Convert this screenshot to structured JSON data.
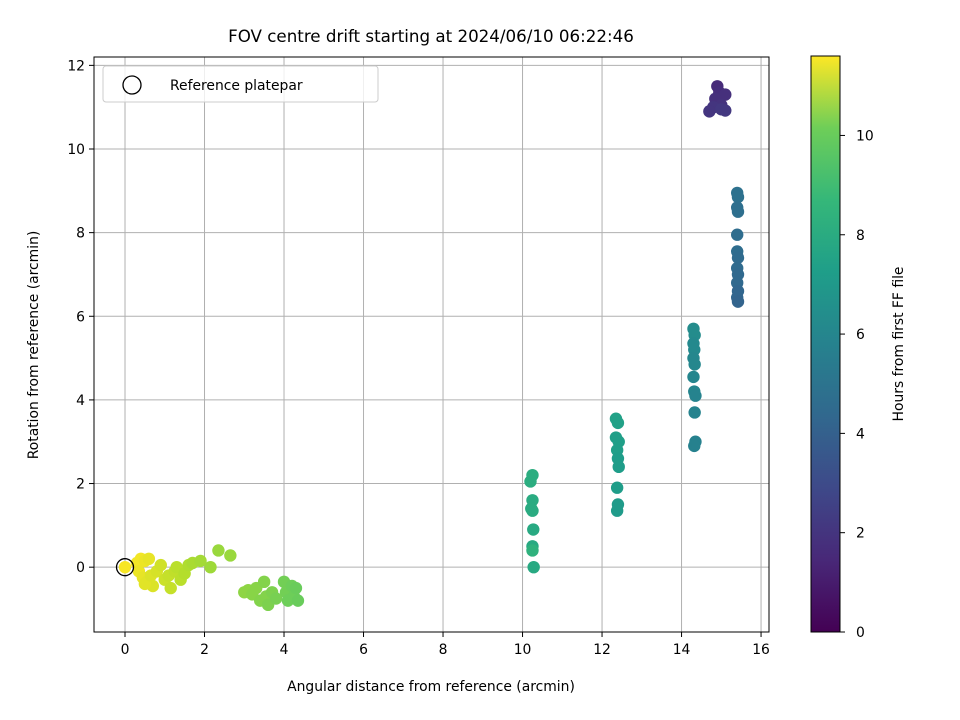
{
  "chart_data": {
    "type": "scatter",
    "title": "FOV centre drift starting at 2024/06/10 06:22:46",
    "xlabel": "Angular distance from reference (arcmin)",
    "ylabel": "Rotation from reference (arcmin)",
    "xlim": [
      -0.78,
      16.2
    ],
    "ylim": [
      -1.55,
      12.2
    ],
    "xticks": [
      0,
      2,
      4,
      6,
      8,
      10,
      12,
      14,
      16
    ],
    "yticks": [
      0,
      2,
      4,
      6,
      8,
      10,
      12
    ],
    "grid": true,
    "legend": {
      "placement": "upper-left",
      "entries": [
        "Reference platepar"
      ]
    },
    "reference_point": {
      "x": 0,
      "y": 0
    },
    "colorbar": {
      "label": "Hours from first FF file",
      "colormap": "viridis",
      "range": [
        0,
        11.6
      ],
      "ticks": [
        0,
        2,
        4,
        6,
        8,
        10
      ]
    },
    "points": [
      {
        "x": 0.0,
        "y": 0.0,
        "h": 11.5
      },
      {
        "x": 0.3,
        "y": 0.1,
        "h": 11.4
      },
      {
        "x": 0.4,
        "y": 0.2,
        "h": 11.4
      },
      {
        "x": 0.5,
        "y": 0.15,
        "h": 11.3
      },
      {
        "x": 0.6,
        "y": 0.2,
        "h": 11.2
      },
      {
        "x": 0.35,
        "y": -0.1,
        "h": 11.3
      },
      {
        "x": 0.45,
        "y": -0.25,
        "h": 11.2
      },
      {
        "x": 0.55,
        "y": -0.35,
        "h": 11.1
      },
      {
        "x": 0.7,
        "y": -0.45,
        "h": 11.0
      },
      {
        "x": 0.5,
        "y": -0.4,
        "h": 11.1
      },
      {
        "x": 0.65,
        "y": -0.2,
        "h": 11.0
      },
      {
        "x": 0.8,
        "y": -0.1,
        "h": 10.9
      },
      {
        "x": 0.9,
        "y": 0.05,
        "h": 10.8
      },
      {
        "x": 1.0,
        "y": -0.3,
        "h": 10.7
      },
      {
        "x": 1.1,
        "y": -0.2,
        "h": 10.6
      },
      {
        "x": 1.15,
        "y": -0.5,
        "h": 10.6
      },
      {
        "x": 1.25,
        "y": -0.1,
        "h": 10.5
      },
      {
        "x": 1.3,
        "y": 0.0,
        "h": 10.4
      },
      {
        "x": 1.4,
        "y": -0.3,
        "h": 10.4
      },
      {
        "x": 1.5,
        "y": -0.15,
        "h": 10.3
      },
      {
        "x": 1.6,
        "y": 0.05,
        "h": 10.2
      },
      {
        "x": 1.7,
        "y": 0.1,
        "h": 10.1
      },
      {
        "x": 1.9,
        "y": 0.15,
        "h": 10.0
      },
      {
        "x": 2.15,
        "y": 0.0,
        "h": 9.9
      },
      {
        "x": 2.35,
        "y": 0.4,
        "h": 9.8
      },
      {
        "x": 2.65,
        "y": 0.28,
        "h": 9.8
      },
      {
        "x": 3.0,
        "y": -0.6,
        "h": 9.6
      },
      {
        "x": 3.1,
        "y": -0.55,
        "h": 9.6
      },
      {
        "x": 3.2,
        "y": -0.65,
        "h": 9.5
      },
      {
        "x": 3.3,
        "y": -0.5,
        "h": 9.5
      },
      {
        "x": 3.4,
        "y": -0.8,
        "h": 9.4
      },
      {
        "x": 3.5,
        "y": -0.35,
        "h": 9.4
      },
      {
        "x": 3.55,
        "y": -0.7,
        "h": 9.4
      },
      {
        "x": 3.6,
        "y": -0.9,
        "h": 9.3
      },
      {
        "x": 3.7,
        "y": -0.6,
        "h": 9.3
      },
      {
        "x": 3.8,
        "y": -0.75,
        "h": 9.2
      },
      {
        "x": 4.0,
        "y": -0.35,
        "h": 9.1
      },
      {
        "x": 4.05,
        "y": -0.6,
        "h": 9.1
      },
      {
        "x": 4.1,
        "y": -0.8,
        "h": 9.0
      },
      {
        "x": 4.2,
        "y": -0.45,
        "h": 9.0
      },
      {
        "x": 4.25,
        "y": -0.7,
        "h": 9.0
      },
      {
        "x": 4.3,
        "y": -0.5,
        "h": 8.9
      },
      {
        "x": 4.35,
        "y": -0.8,
        "h": 8.9
      },
      {
        "x": 10.2,
        "y": 2.05,
        "h": 7.2
      },
      {
        "x": 10.25,
        "y": 2.2,
        "h": 7.2
      },
      {
        "x": 10.25,
        "y": 1.6,
        "h": 7.1
      },
      {
        "x": 10.22,
        "y": 1.4,
        "h": 7.1
      },
      {
        "x": 10.25,
        "y": 1.35,
        "h": 7.1
      },
      {
        "x": 10.27,
        "y": 0.9,
        "h": 7.0
      },
      {
        "x": 10.25,
        "y": 0.5,
        "h": 7.0
      },
      {
        "x": 10.25,
        "y": 0.4,
        "h": 7.4
      },
      {
        "x": 10.28,
        "y": 0.0,
        "h": 7.0
      },
      {
        "x": 12.35,
        "y": 3.55,
        "h": 6.6
      },
      {
        "x": 12.4,
        "y": 3.45,
        "h": 6.6
      },
      {
        "x": 12.35,
        "y": 3.1,
        "h": 6.5
      },
      {
        "x": 12.42,
        "y": 3.0,
        "h": 6.5
      },
      {
        "x": 12.38,
        "y": 2.8,
        "h": 6.5
      },
      {
        "x": 12.4,
        "y": 2.6,
        "h": 6.4
      },
      {
        "x": 12.42,
        "y": 2.4,
        "h": 6.4
      },
      {
        "x": 12.38,
        "y": 1.9,
        "h": 6.4
      },
      {
        "x": 12.4,
        "y": 1.5,
        "h": 6.3
      },
      {
        "x": 12.38,
        "y": 1.35,
        "h": 6.3
      },
      {
        "x": 14.3,
        "y": 5.7,
        "h": 5.6
      },
      {
        "x": 14.33,
        "y": 5.55,
        "h": 5.6
      },
      {
        "x": 14.3,
        "y": 5.35,
        "h": 5.5
      },
      {
        "x": 14.32,
        "y": 5.2,
        "h": 5.5
      },
      {
        "x": 14.3,
        "y": 5.0,
        "h": 5.4
      },
      {
        "x": 14.33,
        "y": 4.85,
        "h": 5.4
      },
      {
        "x": 14.3,
        "y": 4.55,
        "h": 5.3
      },
      {
        "x": 14.32,
        "y": 4.2,
        "h": 5.3
      },
      {
        "x": 14.35,
        "y": 4.1,
        "h": 5.2
      },
      {
        "x": 14.33,
        "y": 3.7,
        "h": 5.2
      },
      {
        "x": 14.35,
        "y": 3.0,
        "h": 5.1
      },
      {
        "x": 14.32,
        "y": 2.9,
        "h": 5.1
      },
      {
        "x": 15.4,
        "y": 8.95,
        "h": 4.3
      },
      {
        "x": 15.42,
        "y": 8.85,
        "h": 4.3
      },
      {
        "x": 15.4,
        "y": 8.6,
        "h": 4.2
      },
      {
        "x": 15.42,
        "y": 8.5,
        "h": 4.2
      },
      {
        "x": 15.4,
        "y": 7.95,
        "h": 4.1
      },
      {
        "x": 15.4,
        "y": 7.55,
        "h": 4.1
      },
      {
        "x": 15.42,
        "y": 7.4,
        "h": 4.0
      },
      {
        "x": 15.4,
        "y": 7.15,
        "h": 4.0
      },
      {
        "x": 15.42,
        "y": 7.0,
        "h": 3.9
      },
      {
        "x": 15.4,
        "y": 6.8,
        "h": 3.9
      },
      {
        "x": 15.42,
        "y": 6.6,
        "h": 3.8
      },
      {
        "x": 15.4,
        "y": 6.45,
        "h": 3.8
      },
      {
        "x": 15.42,
        "y": 6.35,
        "h": 3.7
      },
      {
        "x": 14.9,
        "y": 11.5,
        "h": 1.4
      },
      {
        "x": 14.95,
        "y": 11.35,
        "h": 1.5
      },
      {
        "x": 15.1,
        "y": 11.3,
        "h": 1.6
      },
      {
        "x": 14.85,
        "y": 11.2,
        "h": 1.6
      },
      {
        "x": 15.0,
        "y": 11.05,
        "h": 1.7
      },
      {
        "x": 14.8,
        "y": 11.0,
        "h": 1.8
      },
      {
        "x": 14.7,
        "y": 10.9,
        "h": 1.8
      },
      {
        "x": 15.0,
        "y": 10.95,
        "h": 1.9
      },
      {
        "x": 15.1,
        "y": 10.92,
        "h": 1.9
      }
    ]
  }
}
